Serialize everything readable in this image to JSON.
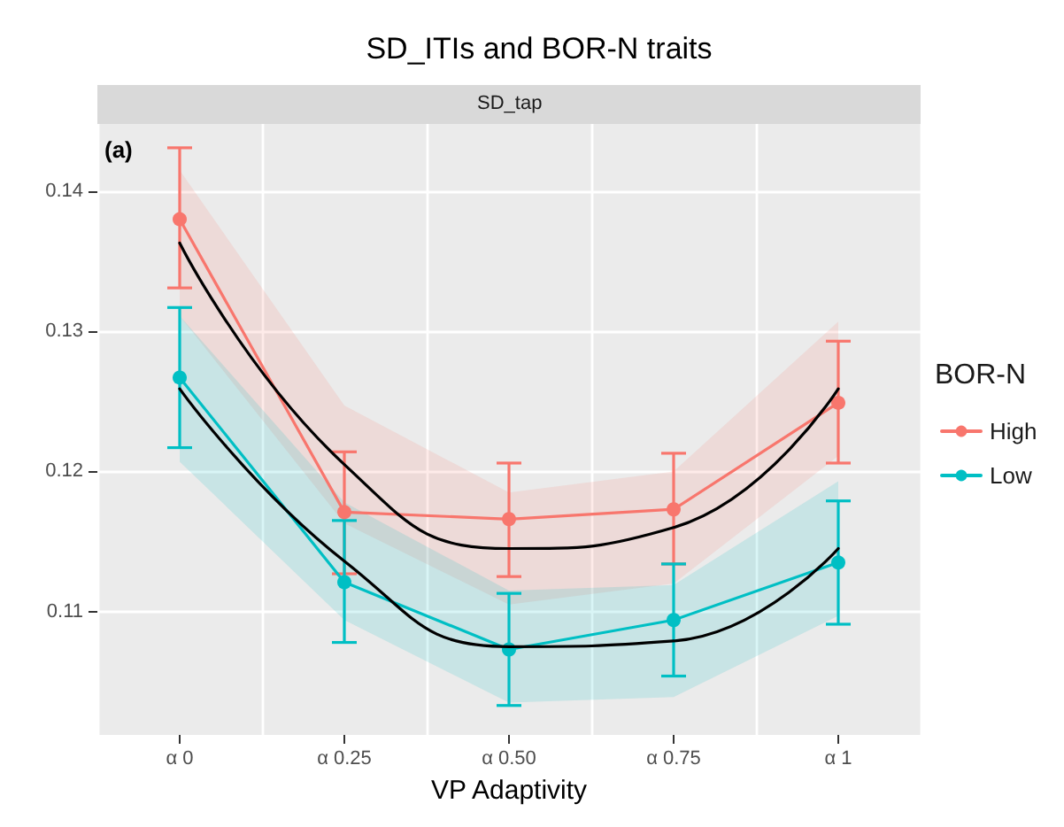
{
  "chart_data": {
    "type": "line",
    "title": "SD_ITIs and BOR-N traits",
    "subtitle": "SD_tap",
    "xlabel": "VP Adaptivity",
    "legend_title": "BOR-N",
    "annotations": [
      "(a)"
    ],
    "categories": [
      "α 0",
      "α 0.25",
      "α 0.50",
      "α 0.75",
      "α 1"
    ],
    "ylim": [
      0.1012,
      0.1448
    ],
    "yticks": [
      0.11,
      0.12,
      0.13,
      0.14
    ],
    "series": [
      {
        "name": "High",
        "color": "#f8766d",
        "values": [
          0.138,
          0.1171,
          0.1166,
          0.1173,
          0.1249
        ],
        "errors": [
          [
            0.1331,
            0.1431
          ],
          [
            0.1127,
            0.1214
          ],
          [
            0.1125,
            0.1206
          ],
          [
            0.1134,
            0.1213
          ],
          [
            0.1206,
            0.1293
          ]
        ]
      },
      {
        "name": "Low",
        "color": "#00bfc4",
        "values": [
          0.1267,
          0.1121,
          0.1073,
          0.1094,
          0.1135
        ],
        "errors": [
          [
            0.1217,
            0.1317
          ],
          [
            0.1078,
            0.1165
          ],
          [
            0.1033,
            0.1113
          ],
          [
            0.1054,
            0.1134
          ],
          [
            0.1091,
            0.1179
          ]
        ]
      },
      {
        "type": "line",
        "color": "#000000",
        "marker": "none",
        "values": [
          0.1363,
          0.1205,
          0.1145,
          0.116,
          0.1259
        ],
        "lower": [
          0.1311,
          0.1163,
          0.1105,
          0.112,
          0.1211
        ],
        "upper": [
          0.1415,
          0.1247,
          0.1185,
          0.12,
          0.1307
        ]
      },
      {
        "type": "line",
        "color": "#000000",
        "marker": "none",
        "values": [
          0.1259,
          0.1136,
          0.1075,
          0.1079,
          0.1145
        ],
        "lower": [
          0.1207,
          0.1094,
          0.1035,
          0.1039,
          0.1097
        ],
        "upper": [
          0.1311,
          0.1178,
          0.1115,
          0.1119,
          0.1193
        ]
      }
    ],
    "marker": "circle",
    "line_style": "solid",
    "grid": true,
    "legend": "right"
  }
}
